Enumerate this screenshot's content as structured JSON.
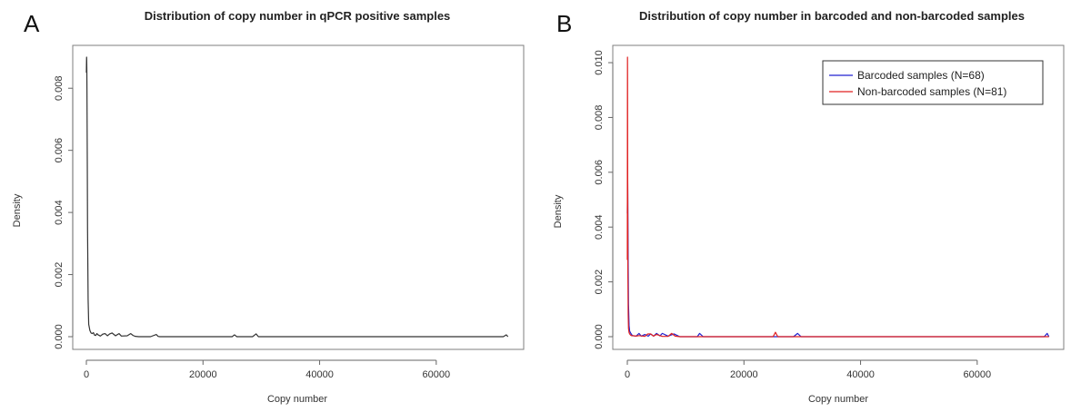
{
  "chart_data": [
    {
      "panel": "A",
      "type": "line",
      "title": "Distribution of copy number in qPCR positive samples",
      "xlabel": "Copy number",
      "ylabel": "Density",
      "xlim": [
        0,
        72500
      ],
      "ylim": [
        0,
        0.009
      ],
      "xticks": [
        0,
        20000,
        40000,
        60000
      ],
      "yticks": [
        0.0,
        0.002,
        0.004,
        0.006,
        0.008
      ],
      "ytick_labels": [
        "0.000",
        "0.002",
        "0.004",
        "0.006",
        "0.008"
      ],
      "grid": false,
      "series": [
        {
          "color": "#333333",
          "x": [
            0,
            20,
            40,
            60,
            80,
            100,
            120,
            160,
            200,
            300,
            400,
            600,
            800,
            1000,
            1200,
            1400,
            1600,
            1800,
            2000,
            2400,
            2800,
            3200,
            3600,
            4000,
            4400,
            5000,
            5600,
            6000,
            7000,
            7600,
            8000,
            8400,
            9000,
            11000,
            12000,
            12300,
            12600,
            14000,
            20000,
            25000,
            25400,
            25800,
            28500,
            29100,
            29500,
            40000,
            60000,
            71500,
            72000,
            72300
          ],
          "values": [
            0.0085,
            0.0088,
            0.009,
            0.0089,
            0.0086,
            0.008,
            0.0072,
            0.0055,
            0.0035,
            0.0012,
            0.0004,
            0.0002,
            0.00012,
            0.0001,
            0.00013,
            5e-05,
            4e-05,
            0.0001,
            6e-05,
            2e-05,
            8e-05,
            0.0001,
            3e-05,
            9e-05,
            0.00012,
            3e-05,
            0.0001,
            2e-05,
            3e-05,
            0.0001,
            4e-05,
            1e-05,
            0.0,
            0.0,
            7e-05,
            1e-05,
            0.0,
            0.0,
            0.0,
            0.0,
            6e-05,
            0.0,
            0.0,
            9e-05,
            0.0,
            0.0,
            0.0,
            0.0,
            6e-05,
            0.0
          ]
        }
      ]
    },
    {
      "panel": "B",
      "type": "line",
      "title": "Distribution of copy number in barcoded and non-barcoded samples",
      "xlabel": "Copy number",
      "ylabel": "Density",
      "xlim": [
        0,
        72500
      ],
      "ylim": [
        0,
        0.0102
      ],
      "xticks": [
        0,
        20000,
        40000,
        60000
      ],
      "yticks": [
        0.0,
        0.002,
        0.004,
        0.006,
        0.008,
        0.01
      ],
      "ytick_labels": [
        "0.000",
        "0.002",
        "0.004",
        "0.006",
        "0.008",
        "0.010"
      ],
      "grid": false,
      "legend_position": "top-right",
      "series": [
        {
          "name": "Barcoded samples (N=68)",
          "color": "#2020d0",
          "x": [
            0,
            20,
            40,
            60,
            80,
            100,
            150,
            200,
            300,
            400,
            600,
            800,
            1000,
            1500,
            2000,
            2400,
            3000,
            3600,
            4000,
            4500,
            5000,
            5600,
            6000,
            7000,
            8000,
            9000,
            12000,
            12400,
            13000,
            20000,
            25000,
            28500,
            29200,
            29800,
            40000,
            60000,
            71500,
            72000,
            72300
          ],
          "values": [
            0.0045,
            0.005,
            0.0059,
            0.0058,
            0.0052,
            0.0044,
            0.0025,
            0.0012,
            0.0004,
            0.0002,
            0.00012,
            6e-05,
            3e-05,
            2e-05,
            0.00012,
            2e-05,
            8e-05,
            2e-05,
            0.0001,
            2e-05,
            0.00012,
            3e-05,
            0.00012,
            2e-05,
            0.0001,
            0.0,
            0.0,
            0.00012,
            0.0,
            0.0,
            0.0,
            0.0,
            0.00012,
            0.0,
            0.0,
            0.0,
            0.0,
            0.00012,
            0.0
          ]
        },
        {
          "name": "Non-barcoded samples (N=81)",
          "color": "#e02020",
          "x": [
            0,
            10,
            20,
            30,
            40,
            50,
            60,
            80,
            100,
            150,
            200,
            300,
            400,
            600,
            800,
            1000,
            1500,
            2000,
            3000,
            3500,
            4000,
            4500,
            5000,
            6000,
            7000,
            7600,
            8200,
            9000,
            20000,
            25000,
            25400,
            25800,
            30000,
            60000,
            72300
          ],
          "values": [
            0.0028,
            0.005,
            0.0085,
            0.0102,
            0.0095,
            0.008,
            0.0065,
            0.004,
            0.0022,
            0.0008,
            0.0003,
            0.00015,
            0.0001,
            5e-05,
            3e-05,
            4e-05,
            2e-05,
            4e-05,
            1e-05,
            0.0001,
            0.0001,
            2e-05,
            8e-05,
            1e-05,
            1e-05,
            0.00012,
            2e-05,
            0.0,
            0.0,
            0.0,
            0.00016,
            0.0,
            0.0,
            0.0,
            0.0
          ]
        }
      ]
    }
  ]
}
